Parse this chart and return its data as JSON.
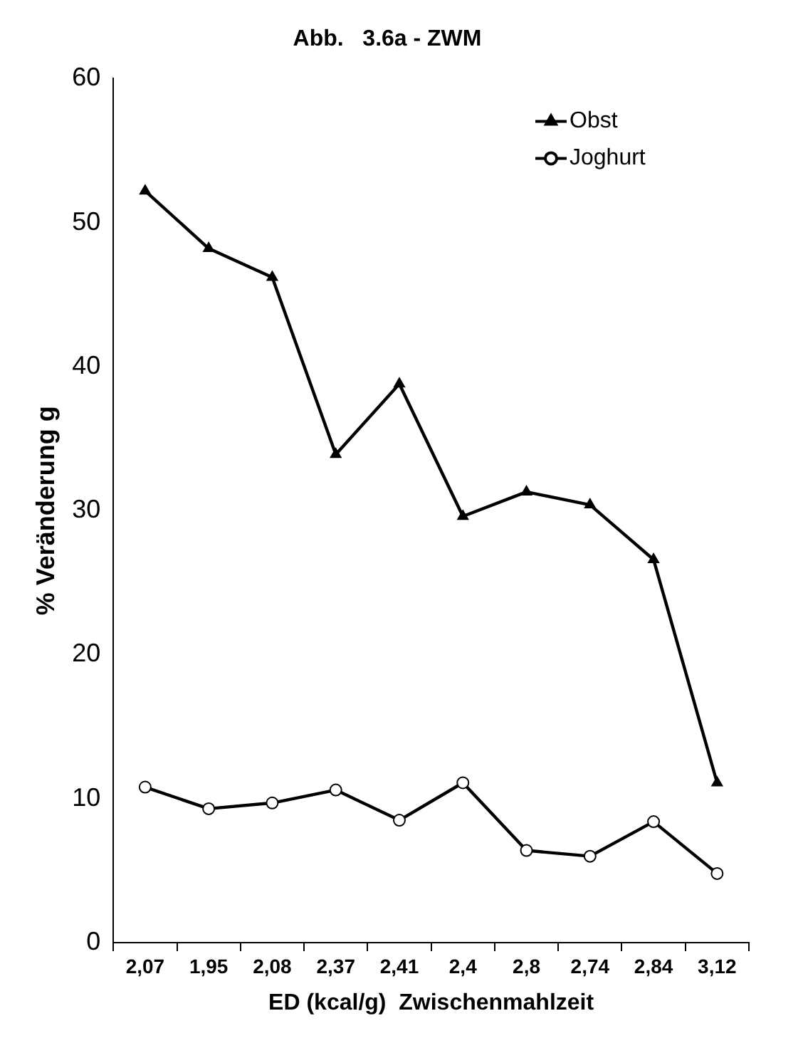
{
  "chart_data": {
    "type": "line",
    "title": "Abb.   3.6a - ZWM",
    "xlabel": "ED (kcal/g)  Zwischenmahlzeit",
    "ylabel": "% Veränderung g",
    "categories": [
      "2,07",
      "1,95",
      "2,08",
      "2,37",
      "2,41",
      "2,4",
      "2,8",
      "2,74",
      "2,84",
      "3,12"
    ],
    "series": [
      {
        "name": "Obst",
        "color": "#000000",
        "marker": "triangle",
        "values": [
          52.2,
          48.2,
          46.2,
          33.9,
          38.8,
          29.6,
          31.3,
          30.4,
          26.6,
          11.1
        ]
      },
      {
        "name": "Joghurt",
        "color": "#000000",
        "marker": "circle",
        "values": [
          10.8,
          9.3,
          9.7,
          10.6,
          8.5,
          11.1,
          6.4,
          6.0,
          8.4,
          4.8
        ]
      }
    ],
    "ylim": [
      0,
      60
    ],
    "yticks": [
      0,
      10,
      20,
      30,
      40,
      50,
      60
    ],
    "grid": false,
    "legend": "top right",
    "line_style": "solid"
  }
}
